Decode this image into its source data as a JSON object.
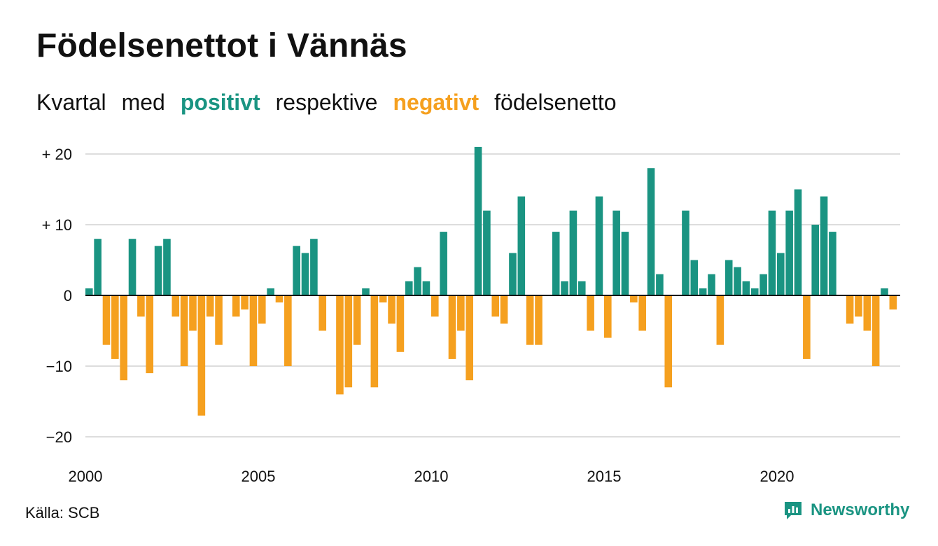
{
  "title": "Födelsenettot i Vännäs",
  "subtitle": {
    "part1": "Kvartal",
    "part2": "med",
    "positive": "positivt",
    "part3": "respektive",
    "negative": "negativt",
    "part4": "födelsenetto"
  },
  "source": "Källa: SCB",
  "brand": "Newsworthy",
  "colors": {
    "positive": "#1a9482",
    "negative": "#f5a01f",
    "grid": "#dddddd",
    "zero": "#111111"
  },
  "chart_data": {
    "type": "bar",
    "x_start": "2000 Q1",
    "x_frequency": "quarterly",
    "xticks": [
      "2000",
      "2005",
      "2010",
      "2015",
      "2020"
    ],
    "yticks": [
      {
        "value": 20,
        "label": "+ 20"
      },
      {
        "value": 10,
        "label": "+ 10"
      },
      {
        "value": 0,
        "label": "0"
      },
      {
        "value": -10,
        "label": "−10"
      },
      {
        "value": -20,
        "label": "−20"
      }
    ],
    "ylim": [
      -22,
      21
    ],
    "grid": true,
    "values": [
      1,
      8,
      -7,
      -9,
      -12,
      8,
      -3,
      -11,
      7,
      8,
      -3,
      -10,
      -5,
      -17,
      -3,
      -7,
      0,
      -3,
      -2,
      -10,
      -4,
      1,
      -1,
      -10,
      7,
      6,
      8,
      -5,
      0,
      -14,
      -13,
      -7,
      1,
      -13,
      -1,
      -4,
      -8,
      2,
      4,
      2,
      -3,
      9,
      -9,
      -5,
      -12,
      21,
      12,
      -3,
      -4,
      6,
      14,
      -7,
      -7,
      0,
      9,
      2,
      12,
      2,
      -5,
      14,
      -6,
      12,
      9,
      -1,
      -5,
      18,
      3,
      -13,
      0,
      12,
      5,
      1,
      3,
      -7,
      5,
      4,
      2,
      1,
      3,
      12,
      6,
      12,
      15,
      -9,
      10,
      14,
      9,
      0,
      -4,
      -3,
      -5,
      -10,
      1,
      -2
    ]
  }
}
